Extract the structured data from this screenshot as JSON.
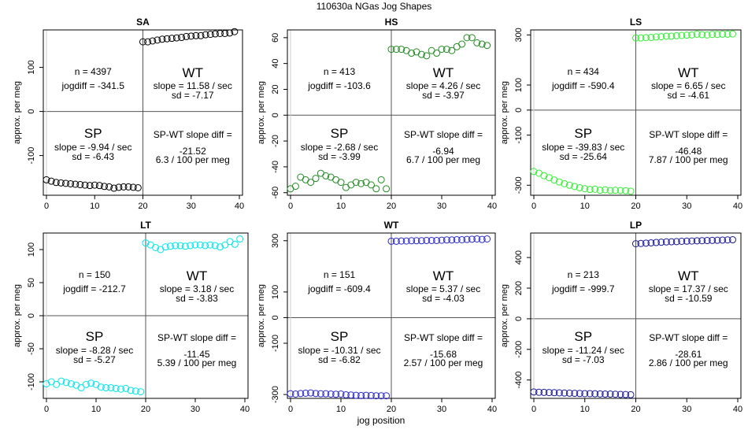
{
  "title": "110630a    NGas Jog Shapes",
  "xlabel": "jog position",
  "chart_data": [
    {
      "type": "scatter",
      "title": "SA",
      "xlabel": "jog position",
      "ylabel": "approx. per meg",
      "xlim": [
        0,
        40
      ],
      "ylim": [
        -190,
        185
      ],
      "xticks": [
        0,
        10,
        20,
        30,
        40
      ],
      "yticks": [
        -100,
        0,
        100
      ],
      "xtick_labels": [
        "0",
        "10",
        "20",
        "30",
        "40"
      ],
      "ytick_labels": [
        "-100",
        "0",
        "100"
      ],
      "color": "#000000",
      "series": [
        {
          "name": "SP",
          "x": [
            0,
            1,
            2,
            3,
            4,
            5,
            6,
            7,
            8,
            9,
            10,
            11,
            12,
            13,
            14,
            15,
            16,
            17,
            18,
            19
          ],
          "y": [
            -155,
            -158,
            -161,
            -162,
            -163,
            -164,
            -165,
            -166,
            -167,
            -168,
            -167,
            -168,
            -170,
            -171,
            -174,
            -172,
            -171,
            -171,
            -172,
            -173
          ]
        },
        {
          "name": "WT",
          "x": [
            20,
            21,
            22,
            23,
            24,
            25,
            26,
            27,
            28,
            29,
            30,
            31,
            32,
            33,
            34,
            35,
            36,
            37,
            38,
            39
          ],
          "y": [
            158,
            158,
            160,
            162,
            164,
            165,
            166,
            167,
            168,
            170,
            171,
            172,
            172,
            174,
            175,
            176,
            177,
            177,
            178,
            181
          ]
        }
      ],
      "annotations": {
        "n": "n = 4397",
        "jogdiff": "jogdiff = -341.5",
        "wt_label": "WT",
        "wt_slope": "slope = 11.58 / sec",
        "wt_sd": "sd = -7.17",
        "sp_label": "SP",
        "sp_slope": "slope = -9.94 / sec",
        "sp_sd": "sd = -6.43",
        "diff_label": "SP-WT slope diff =",
        "diff_value": "-21.52",
        "diff_per": "6.3 / 100 per meg"
      }
    },
    {
      "type": "scatter",
      "title": "HS",
      "xlabel": "jog position",
      "ylabel": "approx. per meg",
      "xlim": [
        0,
        40
      ],
      "ylim": [
        -62,
        66
      ],
      "xticks": [
        0,
        10,
        20,
        30,
        40
      ],
      "yticks": [
        -60,
        -40,
        -20,
        0,
        20,
        40,
        60
      ],
      "xtick_labels": [
        "0",
        "10",
        "20",
        "30",
        "40"
      ],
      "ytick_labels": [
        "-60",
        "-40",
        "-20",
        "0",
        "20",
        "40",
        "60"
      ],
      "color": "#228b22",
      "series": [
        {
          "name": "SP",
          "x": [
            0,
            1,
            2,
            3,
            4,
            5,
            6,
            7,
            8,
            9,
            10,
            11,
            12,
            13,
            14,
            15,
            16,
            17,
            18,
            19
          ],
          "y": [
            -57,
            -55,
            -48,
            -50,
            -52,
            -49,
            -45,
            -47,
            -48,
            -50,
            -52,
            -56,
            -54,
            -52,
            -53,
            -52,
            -54,
            -57,
            -50,
            -57
          ]
        },
        {
          "name": "WT",
          "x": [
            20,
            21,
            22,
            23,
            24,
            25,
            26,
            27,
            28,
            29,
            30,
            31,
            32,
            33,
            34,
            35,
            36,
            37,
            38,
            39
          ],
          "y": [
            51,
            51,
            51,
            50,
            48,
            49,
            47,
            46,
            50,
            48,
            51,
            51,
            50,
            53,
            55,
            60,
            60,
            56,
            55,
            54
          ]
        }
      ],
      "annotations": {
        "n": "n = 413",
        "jogdiff": "jogdiff = -103.6",
        "wt_label": "WT",
        "wt_slope": "slope = 4.26 / sec",
        "wt_sd": "sd = -3.97",
        "sp_label": "SP",
        "sp_slope": "slope = -2.68 / sec",
        "sp_sd": "sd = -3.99",
        "diff_label": "SP-WT slope diff =",
        "diff_value": "-6.94",
        "diff_per": "6.7 / 100 per meg"
      }
    },
    {
      "type": "scatter",
      "title": "LS",
      "xlabel": "jog position",
      "ylabel": "approx. per meg",
      "xlim": [
        0,
        40
      ],
      "ylim": [
        -340,
        320
      ],
      "xticks": [
        0,
        10,
        20,
        30,
        40
      ],
      "yticks": [
        -300,
        -100,
        0,
        100,
        300
      ],
      "xtick_labels": [
        "0",
        "10",
        "20",
        "30",
        "40"
      ],
      "ytick_labels": [
        "-300",
        "-100",
        "0",
        "100",
        "300"
      ],
      "color": "#33ee33",
      "series": [
        {
          "name": "SP",
          "x": [
            0,
            1,
            2,
            3,
            4,
            5,
            6,
            7,
            8,
            9,
            10,
            11,
            12,
            13,
            14,
            15,
            16,
            17,
            18,
            19
          ],
          "y": [
            -245,
            -252,
            -262,
            -270,
            -279,
            -287,
            -294,
            -300,
            -305,
            -310,
            -314,
            -317,
            -316,
            -320,
            -318,
            -321,
            -320,
            -321,
            -322,
            -324
          ]
        },
        {
          "name": "WT",
          "x": [
            20,
            21,
            22,
            23,
            24,
            25,
            26,
            27,
            28,
            29,
            30,
            31,
            32,
            33,
            34,
            35,
            36,
            37,
            38,
            39
          ],
          "y": [
            288,
            288,
            289,
            290,
            292,
            293,
            295,
            295,
            297,
            298,
            299,
            300,
            303,
            301,
            300,
            302,
            302,
            303,
            303,
            304
          ]
        }
      ],
      "annotations": {
        "n": "n = 434",
        "jogdiff": "jogdiff = -590.4",
        "wt_label": "WT",
        "wt_slope": "slope = 6.65 / sec",
        "wt_sd": "sd = -4.61",
        "sp_label": "SP",
        "sp_slope": "slope = -39.83 / sec",
        "sp_sd": "sd = -25.64",
        "diff_label": "SP-WT slope diff =",
        "diff_value": "-46.48",
        "diff_per": "7.87 / 100 per meg"
      }
    },
    {
      "type": "scatter",
      "title": "LT",
      "xlabel": "jog position",
      "ylabel": "approx. per meg",
      "xlim": [
        0,
        40
      ],
      "ylim": [
        -125,
        125
      ],
      "xticks": [
        0,
        10,
        20,
        30,
        40
      ],
      "yticks": [
        -100,
        -50,
        0,
        50,
        100
      ],
      "xtick_labels": [
        "0",
        "10",
        "20",
        "30",
        "40"
      ],
      "ytick_labels": [
        "-100",
        "-50",
        "0",
        "50",
        "100"
      ],
      "color": "#00e5ee",
      "series": [
        {
          "name": "SP",
          "x": [
            0,
            1,
            2,
            3,
            4,
            5,
            6,
            7,
            8,
            9,
            10,
            11,
            12,
            13,
            14,
            15,
            16,
            17,
            18,
            19
          ],
          "y": [
            -103,
            -100,
            -104,
            -99,
            -101,
            -103,
            -105,
            -109,
            -104,
            -102,
            -104,
            -108,
            -109,
            -109,
            -110,
            -111,
            -110,
            -113,
            -114,
            -115
          ]
        },
        {
          "name": "WT",
          "x": [
            20,
            21,
            22,
            23,
            24,
            25,
            26,
            27,
            28,
            29,
            30,
            31,
            32,
            33,
            34,
            35,
            36,
            37,
            38,
            39
          ],
          "y": [
            110,
            107,
            103,
            100,
            104,
            105,
            106,
            106,
            105,
            106,
            107,
            107,
            106,
            107,
            106,
            104,
            107,
            112,
            108,
            116
          ]
        }
      ],
      "annotations": {
        "n": "n = 150",
        "jogdiff": "jogdiff = -212.7",
        "wt_label": "WT",
        "wt_slope": "slope = 3.18 / sec",
        "wt_sd": "sd = -3.83",
        "sp_label": "SP",
        "sp_slope": "slope = -8.28 / sec",
        "sp_sd": "sd = -5.27",
        "diff_label": "SP-WT slope diff =",
        "diff_value": "-11.45",
        "diff_per": "5.39 / 100 per meg"
      }
    },
    {
      "type": "scatter",
      "title": "WT",
      "xlabel": "jog position",
      "ylabel": "approx. per meg",
      "xlim": [
        0,
        40
      ],
      "ylim": [
        -315,
        330
      ],
      "xticks": [
        0,
        10,
        20,
        30,
        40
      ],
      "yticks": [
        -300,
        -100,
        0,
        100,
        300
      ],
      "xtick_labels": [
        "0",
        "10",
        "20",
        "30",
        "40"
      ],
      "ytick_labels": [
        "-300",
        "-100",
        "0",
        "100",
        "300"
      ],
      "color": "#2a2acc",
      "series": [
        {
          "name": "SP",
          "x": [
            0,
            1,
            2,
            3,
            4,
            5,
            6,
            7,
            8,
            9,
            10,
            11,
            12,
            13,
            14,
            15,
            16,
            17,
            18,
            19
          ],
          "y": [
            -297,
            -298,
            -296,
            -295,
            -294,
            -296,
            -297,
            -297,
            -298,
            -299,
            -298,
            -301,
            -302,
            -303,
            -304,
            -303,
            -304,
            -305,
            -305,
            -305
          ]
        },
        {
          "name": "WT",
          "x": [
            20,
            21,
            22,
            23,
            24,
            25,
            26,
            27,
            28,
            29,
            30,
            31,
            32,
            33,
            34,
            35,
            36,
            37,
            38,
            39
          ],
          "y": [
            298,
            298,
            299,
            299,
            300,
            300,
            300,
            301,
            301,
            301,
            302,
            303,
            303,
            304,
            304,
            305,
            306,
            307,
            305,
            307
          ]
        }
      ],
      "annotations": {
        "n": "n = 151",
        "jogdiff": "jogdiff = -609.4",
        "wt_label": "WT",
        "wt_slope": "slope = 5.37 / sec",
        "wt_sd": "sd = -4.03",
        "sp_label": "SP",
        "sp_slope": "slope = -10.31 / sec",
        "sp_sd": "sd = -6.82",
        "diff_label": "SP-WT slope diff =",
        "diff_value": "-15.68",
        "diff_per": "2.57 / 100 per meg"
      }
    },
    {
      "type": "scatter",
      "title": "LP",
      "xlabel": "jog position",
      "ylabel": "approx. per meg",
      "xlim": [
        0,
        40
      ],
      "ylim": [
        -520,
        560
      ],
      "xticks": [
        0,
        10,
        20,
        30,
        40
      ],
      "yticks": [
        -400,
        -200,
        0,
        200,
        400
      ],
      "xtick_labels": [
        "0",
        "10",
        "20",
        "30",
        "40"
      ],
      "ytick_labels": [
        "-400",
        "-200",
        "0",
        "200",
        "400"
      ],
      "color": "#1a1a99",
      "series": [
        {
          "name": "SP",
          "x": [
            0,
            1,
            2,
            3,
            4,
            5,
            6,
            7,
            8,
            9,
            10,
            11,
            12,
            13,
            14,
            15,
            16,
            17,
            18,
            19
          ],
          "y": [
            -478,
            -480,
            -481,
            -482,
            -483,
            -484,
            -485,
            -486,
            -487,
            -488,
            -489,
            -489,
            -490,
            -491,
            -492,
            -492,
            -493,
            -494,
            -495,
            -496
          ]
        },
        {
          "name": "WT",
          "x": [
            20,
            21,
            22,
            23,
            24,
            25,
            26,
            27,
            28,
            29,
            30,
            31,
            32,
            33,
            34,
            35,
            36,
            37,
            38,
            39
          ],
          "y": [
            490,
            492,
            494,
            496,
            498,
            500,
            502,
            503,
            504,
            506,
            507,
            508,
            509,
            510,
            511,
            512,
            513,
            514,
            515,
            516
          ]
        }
      ],
      "annotations": {
        "n": "n = 213",
        "jogdiff": "jogdiff = -999.7",
        "wt_label": "WT",
        "wt_slope": "slope = 17.37 / sec",
        "wt_sd": "sd = -10.59",
        "sp_label": "SP",
        "sp_slope": "slope = -11.24 / sec",
        "sp_sd": "sd = -7.03",
        "diff_label": "SP-WT slope diff =",
        "diff_value": "-28.61",
        "diff_per": "2.86 / 100 per meg"
      }
    }
  ]
}
